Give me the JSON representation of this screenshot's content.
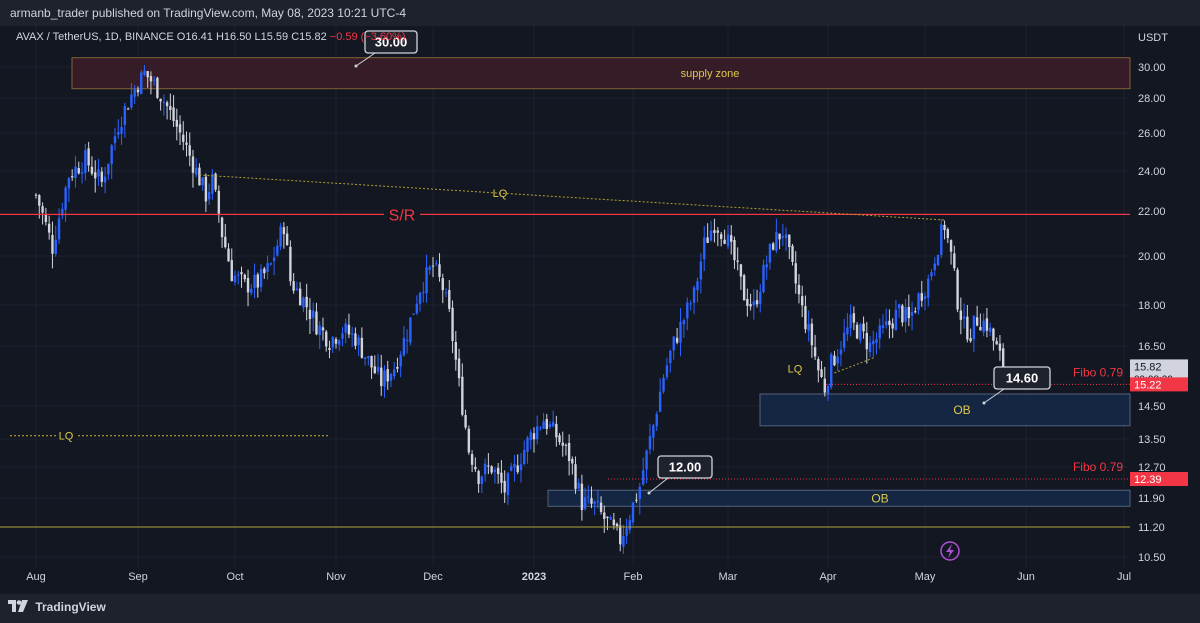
{
  "header": {
    "text": "armanb_trader published on TradingView.com, May 08, 2023 10:21 UTC-4"
  },
  "footer": {
    "brand": "TradingView"
  },
  "legend": {
    "symbol": "AVAX / TetherUS, 1D, BINANCE",
    "open": "O16.41",
    "high": "H16.50",
    "low": "L15.59",
    "close": "C15.82",
    "change": "−0.59 (−3.60%)"
  },
  "chart_data": {
    "type": "candlestick",
    "pair": "AVAX / TetherUS",
    "timeframe": "1D",
    "exchange": "BINANCE",
    "yaxis_unit": "USDT",
    "ylim": [
      10.0,
      31.2
    ],
    "y_ticks": [
      {
        "v": 30.0,
        "label": "30.00"
      },
      {
        "v": 28.0,
        "label": "28.00"
      },
      {
        "v": 26.0,
        "label": "26.00"
      },
      {
        "v": 24.0,
        "label": "24.00"
      },
      {
        "v": 22.0,
        "label": "22.00"
      },
      {
        "v": 20.0,
        "label": "20.00"
      },
      {
        "v": 18.0,
        "label": "18.00"
      },
      {
        "v": 16.5,
        "label": "16.50"
      },
      {
        "v": 14.5,
        "label": "14.50"
      },
      {
        "v": 13.5,
        "label": "13.50"
      },
      {
        "v": 12.7,
        "label": "12.70"
      },
      {
        "v": 11.9,
        "label": "11.90"
      },
      {
        "v": 11.2,
        "label": "11.20"
      },
      {
        "v": 10.5,
        "label": "10.50"
      }
    ],
    "x_ticks": [
      "Aug",
      "Sep",
      "Oct",
      "Nov",
      "Dec",
      "2023",
      "Feb",
      "Mar",
      "Apr",
      "May",
      "Jun",
      "Jul"
    ],
    "price_path": [
      [
        0,
        22.8
      ],
      [
        5,
        20.4
      ],
      [
        10,
        23.8
      ],
      [
        15,
        24.6
      ],
      [
        20,
        23.4
      ],
      [
        25,
        26.5
      ],
      [
        30,
        28.6
      ],
      [
        33,
        29.6
      ],
      [
        36,
        28.9
      ],
      [
        40,
        27.5
      ],
      [
        45,
        25.6
      ],
      [
        50,
        23.6
      ],
      [
        52,
        22.8
      ],
      [
        54,
        23.5
      ],
      [
        57,
        21.0
      ],
      [
        60,
        19.3
      ],
      [
        64,
        18.8
      ],
      [
        68,
        18.9
      ],
      [
        72,
        19.6
      ],
      [
        76,
        21.4
      ],
      [
        78,
        19.0
      ],
      [
        82,
        18.2
      ],
      [
        86,
        17.3
      ],
      [
        90,
        16.7
      ],
      [
        94,
        17.1
      ],
      [
        98,
        16.8
      ],
      [
        102,
        16.0
      ],
      [
        106,
        15.3
      ],
      [
        110,
        15.8
      ],
      [
        114,
        17.0
      ],
      [
        118,
        18.7
      ],
      [
        122,
        19.6
      ],
      [
        125,
        18.7
      ],
      [
        127,
        17.6
      ],
      [
        130,
        15.2
      ],
      [
        133,
        13.2
      ],
      [
        136,
        12.5
      ],
      [
        140,
        12.7
      ],
      [
        144,
        12.1
      ],
      [
        148,
        12.8
      ],
      [
        152,
        13.6
      ],
      [
        156,
        14.1
      ],
      [
        160,
        13.6
      ],
      [
        164,
        13.0
      ],
      [
        168,
        11.8
      ],
      [
        172,
        11.7
      ],
      [
        176,
        11.3
      ],
      [
        180,
        10.9
      ],
      [
        183,
        11.5
      ],
      [
        186,
        12.2
      ],
      [
        190,
        13.9
      ],
      [
        193,
        15.5
      ],
      [
        196,
        16.6
      ],
      [
        199,
        17.5
      ],
      [
        202,
        18.4
      ],
      [
        205,
        20.5
      ],
      [
        208,
        21.5
      ],
      [
        211,
        21.0
      ],
      [
        214,
        19.8
      ],
      [
        217,
        18.4
      ],
      [
        220,
        17.9
      ],
      [
        223,
        19.3
      ],
      [
        226,
        20.6
      ],
      [
        229,
        21.1
      ],
      [
        232,
        19.4
      ],
      [
        235,
        17.8
      ],
      [
        238,
        16.6
      ],
      [
        240,
        15.7
      ],
      [
        242,
        15.1
      ],
      [
        244,
        15.9
      ],
      [
        247,
        16.6
      ],
      [
        250,
        17.3
      ],
      [
        253,
        17.0
      ],
      [
        256,
        16.5
      ],
      [
        259,
        16.9
      ],
      [
        262,
        17.3
      ],
      [
        265,
        17.8
      ],
      [
        268,
        17.4
      ],
      [
        271,
        18.3
      ],
      [
        274,
        19.0
      ],
      [
        277,
        20.5
      ],
      [
        279,
        21.4
      ],
      [
        281,
        20.0
      ],
      [
        283,
        18.2
      ],
      [
        285,
        17.2
      ],
      [
        287,
        17.0
      ],
      [
        289,
        17.5
      ],
      [
        292,
        17.3
      ],
      [
        295,
        16.4
      ],
      [
        297,
        15.8
      ]
    ],
    "annotations": [
      {
        "type": "zone",
        "label": "supply zone",
        "y_top": 30.6,
        "y_bottom": 28.6
      },
      {
        "type": "hline",
        "label": "S/R",
        "y": 21.85
      },
      {
        "type": "zone",
        "label": "OB",
        "y_top": 14.9,
        "y_bottom": 13.9
      },
      {
        "type": "zone",
        "label": "OB",
        "y_top": 12.1,
        "y_bottom": 11.7
      },
      {
        "type": "hline",
        "label": "",
        "y": 11.2
      },
      {
        "type": "trendline",
        "label": "LQ",
        "from_day": 50,
        "from_y": 23.8,
        "to_day": 279,
        "to_y": 21.6
      },
      {
        "type": "hline",
        "label": "LQ",
        "y": 13.6
      },
      {
        "type": "trendline",
        "label": "LQ",
        "from_day": 245,
        "from_y": 15.6,
        "to_day": 257,
        "to_y": 16.1
      },
      {
        "type": "hline",
        "label": "Fibo 0.79",
        "y": 15.22
      },
      {
        "type": "hline",
        "label": "Fibo 0.79",
        "y": 12.39
      }
    ],
    "callouts": [
      "30.00",
      "14.60",
      "12.00"
    ],
    "price_tags": [
      {
        "label": "15.82",
        "y": 15.82,
        "sub": "09:08:29",
        "color": "#d1d4dc"
      },
      {
        "label": "15.22",
        "y": 15.22,
        "color": "#f23645"
      },
      {
        "label": "12.39",
        "y": 12.39,
        "color": "#f23645"
      }
    ],
    "colors": {
      "up": "#2962ff",
      "down": "#d1d4dc",
      "sr": "#f23645",
      "zone_text": "#e0c94a",
      "ob_fill": "#152845",
      "supply_fill": "#3a1d27"
    }
  }
}
